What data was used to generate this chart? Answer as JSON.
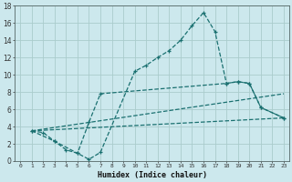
{
  "xlabel": "Humidex (Indice chaleur)",
  "background_color": "#cce8ed",
  "grid_color": "#aacccc",
  "line_color": "#1a7070",
  "xlim": [
    -0.5,
    23.5
  ],
  "ylim": [
    0,
    18
  ],
  "xticks": [
    0,
    1,
    2,
    3,
    4,
    5,
    6,
    7,
    8,
    9,
    10,
    11,
    12,
    13,
    14,
    15,
    16,
    17,
    18,
    19,
    20,
    21,
    22,
    23
  ],
  "yticks": [
    0,
    2,
    4,
    6,
    8,
    10,
    12,
    14,
    16,
    18
  ],
  "series": [
    {
      "x": [
        1,
        2,
        3,
        4,
        5,
        6,
        7,
        10,
        11,
        12,
        13,
        14,
        15,
        16,
        17,
        18,
        19,
        20,
        21,
        23
      ],
      "y": [
        3.5,
        3.3,
        2.3,
        1.3,
        0.9,
        0.2,
        1.0,
        10.4,
        11.1,
        12.0,
        12.8,
        14.0,
        15.7,
        17.2,
        15.0,
        9.0,
        9.2,
        9.0,
        6.2,
        5.0
      ]
    },
    {
      "x": [
        1,
        3,
        5,
        6,
        7,
        18,
        19,
        20,
        21,
        23
      ],
      "y": [
        3.5,
        2.3,
        0.9,
        4.5,
        7.8,
        9.0,
        9.2,
        9.0,
        6.2,
        5.0
      ]
    },
    {
      "x": [
        1,
        23
      ],
      "y": [
        3.5,
        7.8
      ]
    },
    {
      "x": [
        1,
        23
      ],
      "y": [
        3.5,
        5.0
      ]
    }
  ]
}
